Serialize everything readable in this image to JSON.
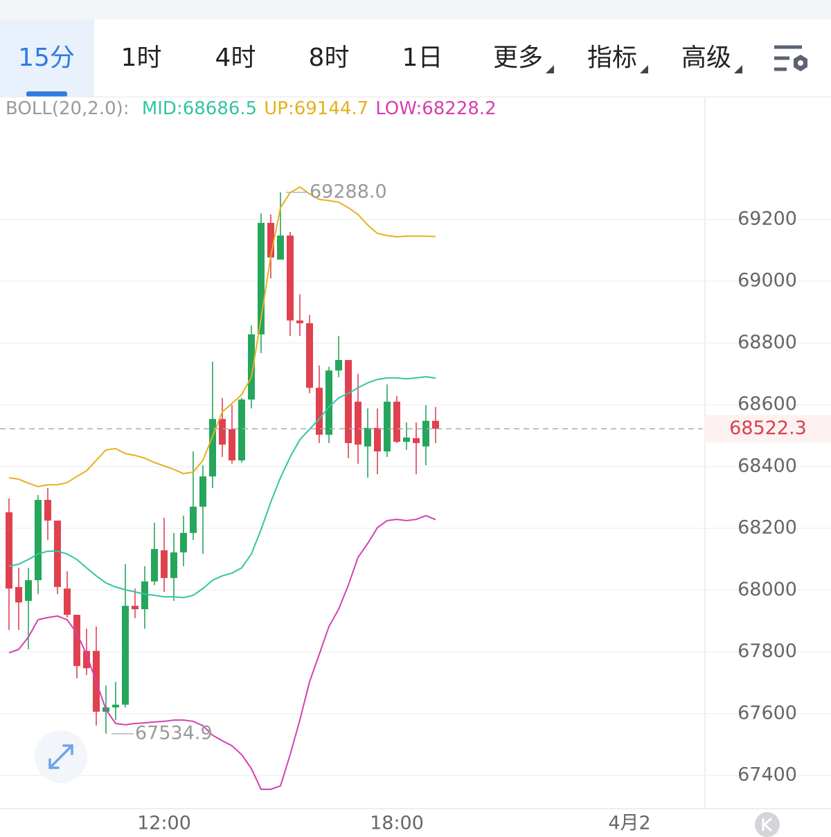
{
  "tabs": [
    "15分",
    "1时",
    "4时",
    "8时",
    "1日",
    "更多",
    "指标",
    "高级"
  ],
  "chart_data": {
    "type": "candlestick",
    "indicator": "BOLL(20,2.0):",
    "categories": [
      null,
      null,
      null,
      null,
      null,
      null,
      null,
      null,
      null,
      null,
      null,
      null,
      null,
      null,
      null,
      null,
      "12:00",
      null,
      null,
      null,
      null,
      null,
      null,
      null,
      null,
      null,
      null,
      null,
      null,
      null,
      null,
      null,
      null,
      null,
      null,
      null,
      null,
      null,
      null,
      null,
      "18:00",
      null,
      null,
      null,
      null,
      null,
      null,
      null,
      null,
      null,
      null,
      null,
      null,
      null,
      null,
      null,
      null,
      null,
      null,
      null,
      null,
      null,
      null,
      null,
      "4月2"
    ],
    "open": [
      68252,
      68010,
      67965,
      68032,
      68292,
      68225,
      68005,
      67920,
      67803,
      67803,
      67606,
      67620,
      67629,
      67949,
      67938,
      68028,
      68129,
      68039,
      68122,
      68185,
      68270,
      68368,
      68554,
      68521,
      68420,
      68617,
      68828,
      69189,
      69070,
      69148,
      68873,
      68864,
      68655,
      68503,
      68711,
      68745,
      68610,
      68465,
      68525,
      68449,
      68610,
      68480,
      68492,
      68465,
      68548,
      null,
      null,
      null,
      null,
      null,
      null,
      null,
      null,
      null,
      null,
      null,
      null,
      null,
      null,
      null,
      null,
      null,
      null,
      null,
      null
    ],
    "high": [
      68297,
      68072,
      68072,
      68308,
      68330,
      68225,
      68061,
      67920,
      67875,
      67882,
      67691,
      67703,
      68084,
      68005,
      68077,
      68218,
      68234,
      68185,
      68241,
      68449,
      68404,
      68740,
      68622,
      68599,
      68622,
      68857,
      69220,
      69216,
      69288,
      69160,
      68958,
      68891,
      68727,
      68723,
      68823,
      68745,
      68700,
      68588,
      68588,
      68666,
      68628,
      68543,
      68543,
      68599,
      68593,
      null,
      null,
      null,
      null,
      null,
      null,
      null,
      null,
      null,
      null,
      null,
      null,
      null,
      null,
      null,
      null,
      null,
      null,
      null,
      null
    ],
    "low": [
      67871,
      67871,
      67808,
      67987,
      68162,
      67987,
      67911,
      67714,
      67725,
      67561,
      67534.9,
      67579,
      67620,
      67909,
      67875,
      68016,
      67994,
      67965,
      68077,
      68162,
      68117,
      68330,
      68431,
      68409,
      68413,
      68588,
      68767,
      69009,
      69070,
      68823,
      68823,
      68637,
      68476,
      68476,
      68689,
      68427,
      68409,
      68364,
      68375,
      68431,
      68476,
      68454,
      68375,
      68404,
      68476,
      null,
      null,
      null,
      null,
      null,
      null,
      null,
      null,
      null,
      null,
      null,
      null,
      null,
      null,
      null,
      null,
      null,
      null,
      null,
      null
    ],
    "close": [
      68005,
      67960,
      68032,
      68292,
      68225,
      68010,
      67920,
      67754,
      67747,
      67606,
      67620,
      67629,
      67949,
      67938,
      68028,
      68133,
      68039,
      68122,
      68185,
      68270,
      68368,
      68554,
      68471,
      68420,
      68617,
      68828,
      69189,
      69077,
      69148,
      68873,
      68864,
      68655,
      68503,
      68711,
      68745,
      68476,
      68471,
      68525,
      68449,
      68610,
      68480,
      68494,
      68476,
      68548,
      68522.3,
      null,
      null,
      null,
      null,
      null,
      null,
      null,
      null,
      null,
      null,
      null,
      null,
      null,
      null,
      null,
      null,
      null,
      null,
      null,
      null
    ],
    "up_color": "#25a65c",
    "down_color": "#e0414f",
    "series": [
      {
        "name": "MID:68686.5",
        "color": "#33c4a3",
        "values": [
          68077,
          68084,
          68099,
          68117,
          68126,
          68126,
          68117,
          68099,
          68072,
          68046,
          68023,
          68010,
          68001,
          67994,
          67987,
          67983,
          67978,
          67978,
          67976,
          67983,
          68005,
          68032,
          68046,
          68055,
          68072,
          68117,
          68196,
          68285,
          68364,
          68431,
          68487,
          68521,
          68554,
          68593,
          68622,
          68637,
          68655,
          68671,
          68682,
          68687,
          68687,
          68684,
          68687,
          68691,
          68686.5,
          null,
          null,
          null,
          null,
          null,
          null,
          null,
          null,
          null,
          null,
          null,
          null,
          null,
          null,
          null,
          null,
          null,
          null,
          null,
          null
        ]
      },
      {
        "name": "UP:69144.7",
        "color": "#e6b01b",
        "values": [
          68364,
          68359,
          68346,
          68335,
          68341,
          68341,
          68348,
          68368,
          68386,
          68420,
          68454,
          68458,
          68442,
          68436,
          68427,
          68413,
          68402,
          68391,
          68377,
          68382,
          68420,
          68498,
          68577,
          68604,
          68633,
          68689,
          68879,
          69081,
          69238,
          69287,
          69305,
          69283,
          69265,
          69261,
          69256,
          69238,
          69216,
          69182,
          69155,
          69148,
          69144,
          69146,
          69146,
          69146,
          69144.7,
          null,
          null,
          null,
          null,
          null,
          null,
          null,
          null,
          null,
          null,
          null,
          null,
          null,
          null,
          null,
          null,
          null,
          null,
          null,
          null
        ]
      },
      {
        "name": "LOW:68228.2",
        "color": "#d53fae",
        "values": [
          67797,
          67808,
          67848,
          67904,
          67911,
          67916,
          67904,
          67860,
          67792,
          67703,
          67613,
          67568,
          67564,
          67568,
          67570,
          67573,
          67575,
          67579,
          67579,
          67575,
          67561,
          67530,
          67512,
          67496,
          67467,
          67422,
          67355,
          67355,
          67366,
          67467,
          67579,
          67703,
          67792,
          67882,
          67938,
          68016,
          68106,
          68151,
          68202,
          68225,
          68229,
          68225,
          68229,
          68241,
          68228.2,
          null,
          null,
          null,
          null,
          null,
          null,
          null,
          null,
          null,
          null,
          null,
          null,
          null,
          null,
          null,
          null,
          null,
          null,
          null,
          null
        ]
      }
    ],
    "ylim": [
      67292.4,
      69596.8
    ],
    "yticks": [
      67400,
      67600,
      67800,
      68000,
      68200,
      68400,
      68600,
      68800,
      69000,
      69200
    ],
    "grid": true,
    "high_label": {
      "value": 69288,
      "label": "69288.0"
    },
    "low_label": {
      "value": 67534.9,
      "label": "67534.9"
    },
    "last_price": 68522.3
  }
}
